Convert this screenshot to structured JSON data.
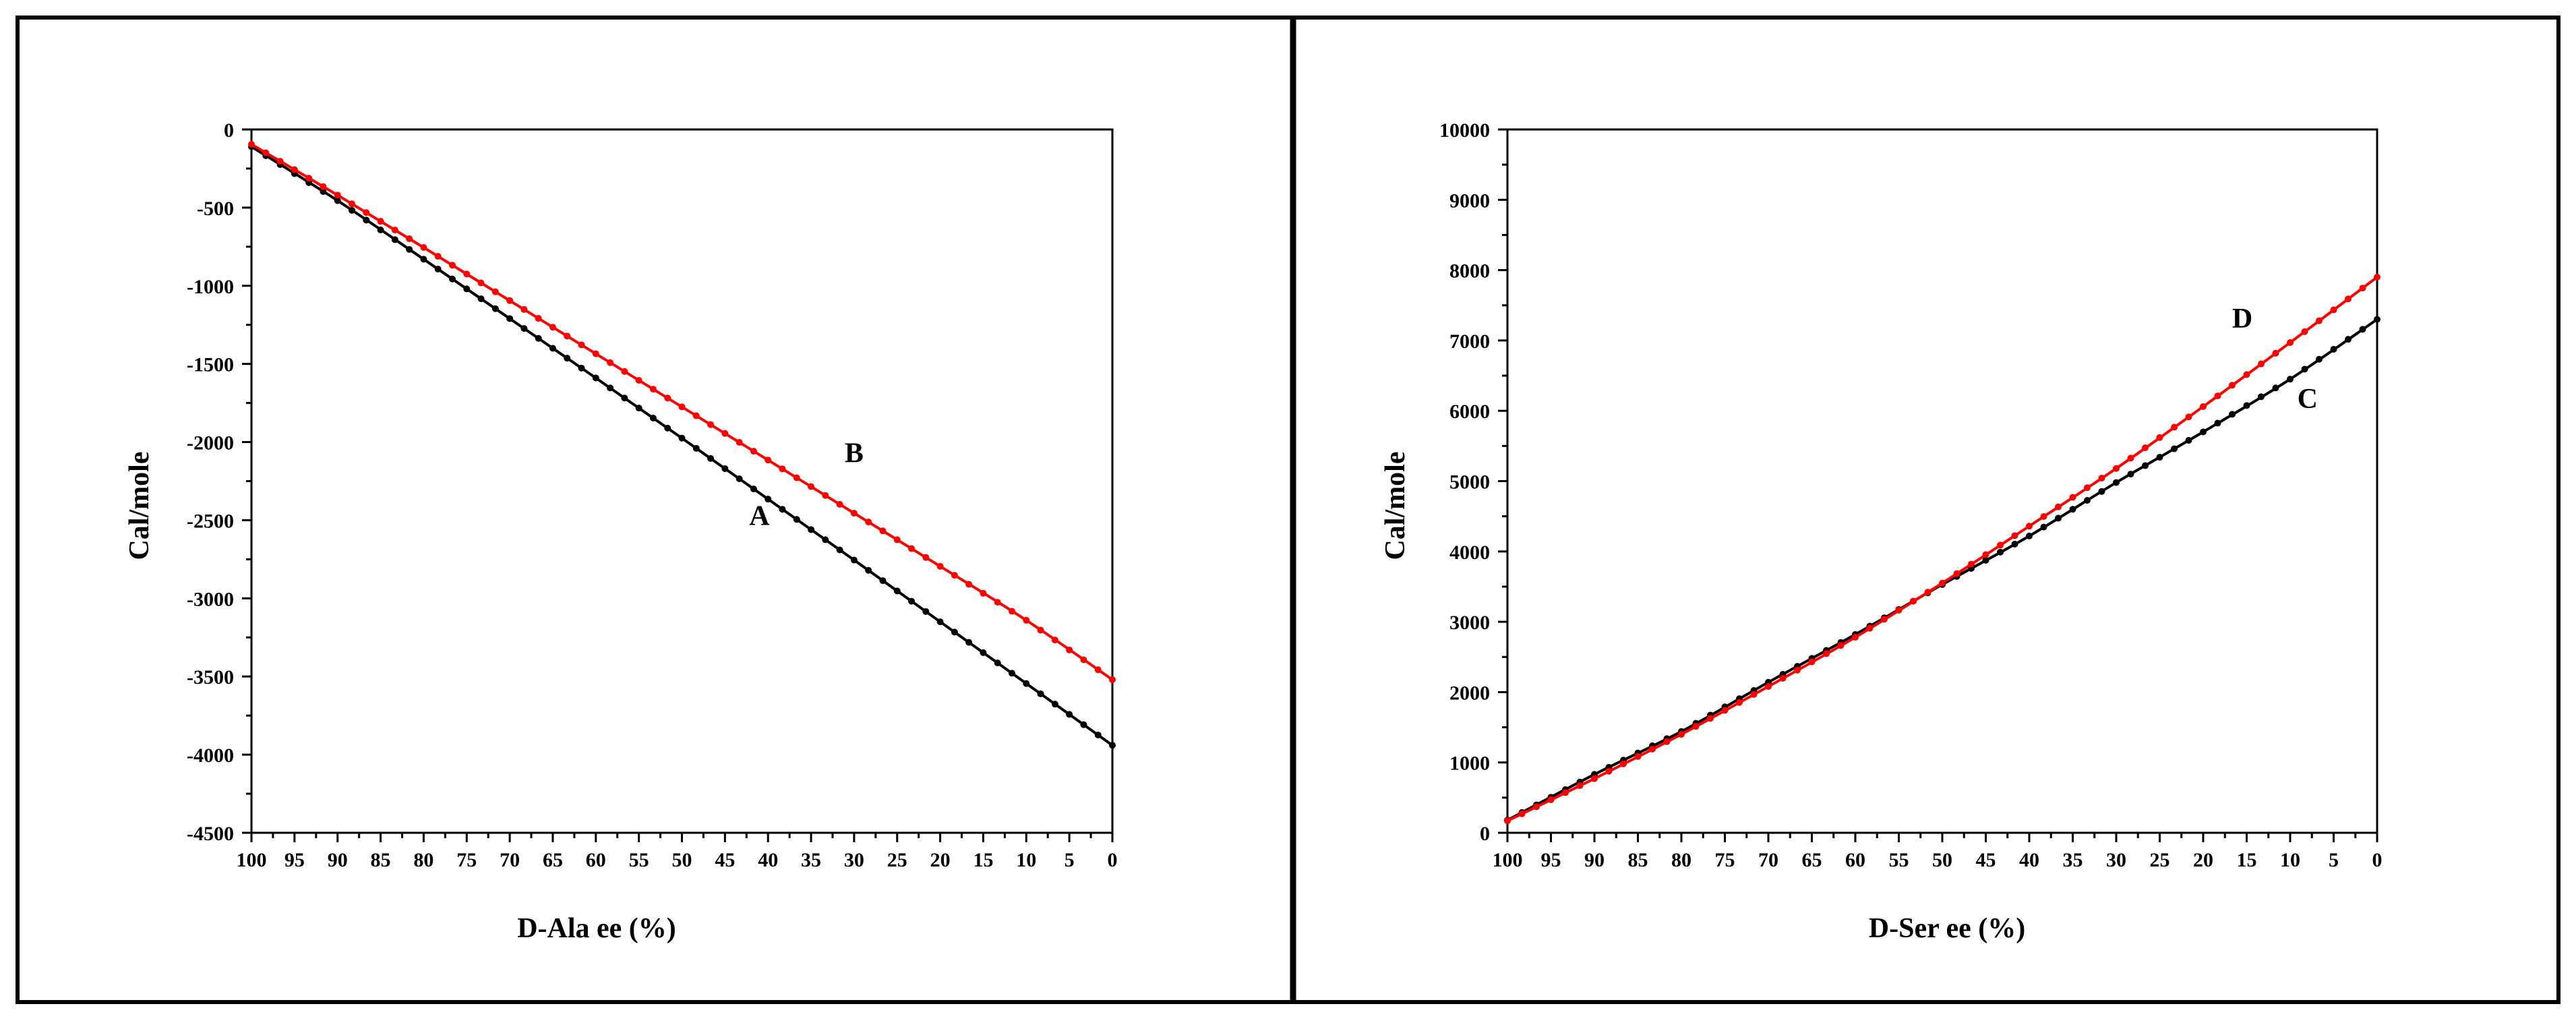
{
  "chart_data": [
    {
      "type": "line",
      "title": "",
      "xlabel": "D-Ala ee (%)",
      "ylabel": "Cal/mole",
      "xlim": [
        100,
        0
      ],
      "ylim": [
        -4500,
        0
      ],
      "x_ticks": [
        100,
        95,
        90,
        85,
        80,
        75,
        70,
        65,
        60,
        55,
        50,
        45,
        40,
        35,
        30,
        25,
        20,
        15,
        10,
        5,
        0
      ],
      "x_tick_labels": [
        "100",
        "95",
        "90",
        "85",
        "80",
        "75",
        "70",
        "65",
        "60",
        "55",
        "50",
        "45",
        "40",
        "35",
        "30",
        "25",
        "20",
        "15",
        "10",
        "5",
        "0"
      ],
      "y_ticks": [
        0,
        -500,
        -1000,
        -1500,
        -2000,
        -2500,
        -3000,
        -3500,
        -4000,
        -4500
      ],
      "y_tick_labels": [
        "0",
        "-500",
        "-1000",
        "-1500",
        "-2000",
        "-2500",
        "-3000",
        "-3500",
        "-4000",
        "-4500"
      ],
      "grid": false,
      "series": [
        {
          "name": "A",
          "color": "#000000",
          "x": [
            100,
            90,
            80,
            70,
            60,
            50,
            40,
            30,
            20,
            10,
            0
          ],
          "y": [
            -110,
            -455,
            -830,
            -1210,
            -1590,
            -1975,
            -2365,
            -2755,
            -3150,
            -3545,
            -3940
          ],
          "label_at": [
            41,
            -2530
          ]
        },
        {
          "name": "B",
          "color": "#ff0000",
          "x": [
            100,
            90,
            80,
            70,
            60,
            50,
            40,
            30,
            20,
            10,
            0
          ],
          "y": [
            -95,
            -420,
            -755,
            -1095,
            -1435,
            -1775,
            -2115,
            -2455,
            -2795,
            -3140,
            -3520
          ],
          "label_at": [
            30,
            -2130
          ]
        }
      ]
    },
    {
      "type": "line",
      "title": "",
      "xlabel": "D-Ser ee (%)",
      "ylabel": "Cal/mole",
      "xlim": [
        100,
        0
      ],
      "ylim": [
        0,
        10000
      ],
      "x_ticks": [
        100,
        95,
        90,
        85,
        80,
        75,
        70,
        65,
        60,
        55,
        50,
        45,
        40,
        35,
        30,
        25,
        20,
        15,
        10,
        5,
        0
      ],
      "x_tick_labels": [
        "100",
        "95",
        "90",
        "85",
        "80",
        "75",
        "70",
        "65",
        "60",
        "55",
        "50",
        "45",
        "40",
        "35",
        "30",
        "25",
        "20",
        "15",
        "10",
        "5",
        "0"
      ],
      "y_ticks": [
        0,
        1000,
        2000,
        3000,
        4000,
        5000,
        6000,
        7000,
        8000,
        9000,
        10000
      ],
      "y_tick_labels": [
        "0",
        "1000",
        "2000",
        "3000",
        "4000",
        "5000",
        "6000",
        "7000",
        "8000",
        "9000",
        "10000"
      ],
      "grid": false,
      "series": [
        {
          "name": "C",
          "color": "#000000",
          "x": [
            100,
            90,
            80,
            70,
            60,
            50,
            40,
            30,
            20,
            10,
            0
          ],
          "y": [
            180,
            830,
            1440,
            2140,
            2820,
            3530,
            4220,
            4980,
            5700,
            6450,
            7300
          ],
          "label_at": [
            8,
            6040
          ]
        },
        {
          "name": "D",
          "color": "#ff0000",
          "x": [
            100,
            90,
            80,
            70,
            60,
            50,
            40,
            30,
            20,
            10,
            0
          ],
          "y": [
            170,
            770,
            1400,
            2080,
            2780,
            3550,
            4360,
            5180,
            6060,
            6970,
            7900
          ],
          "label_at": [
            15.5,
            7180
          ]
        }
      ]
    }
  ]
}
